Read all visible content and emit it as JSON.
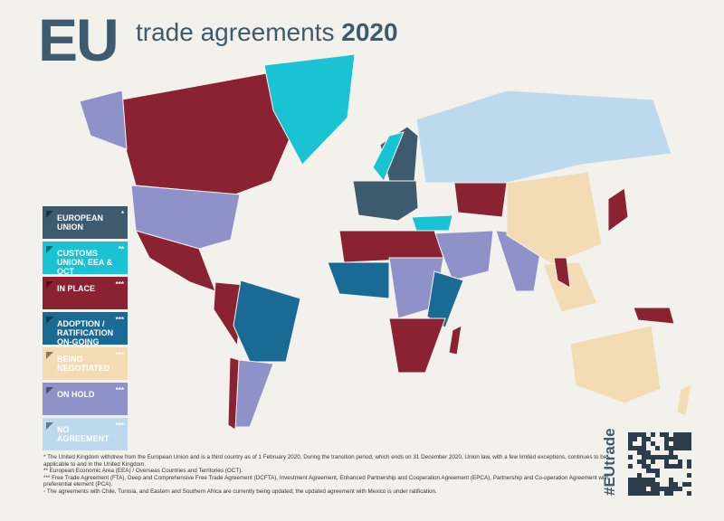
{
  "header": {
    "logo": "EU",
    "title": "trade agreements",
    "year": "2020"
  },
  "legend": [
    {
      "label": "EUROPEAN UNION",
      "note": "*",
      "color": "#3d5a6e"
    },
    {
      "label": "CUSTOMS UNION, EEA & OCT",
      "note": "**",
      "color": "#19c3d4"
    },
    {
      "label": "IN PLACE",
      "note": "***",
      "color": "#8b2232"
    },
    {
      "label": "ADOPTION / RATIFICATION ON-GOING",
      "note": "***",
      "color": "#1a6a96"
    },
    {
      "label": "BEING NEGOTIATED",
      "note": "***",
      "color": "#f3dcb3"
    },
    {
      "label": "ON HOLD",
      "note": "***",
      "color": "#8f92c8"
    },
    {
      "label": "NO AGREEMENT",
      "note": "***",
      "color": "#bcd9ee"
    }
  ],
  "footnotes": [
    "* The United Kingdom withdrew from the European Union and is a third country as of 1 February 2020. During the transition period, which ends on 31 December 2020, Union law, with a few limited exceptions, continues to be applicable to and in the United Kingdom.",
    "** European Economic Area (EEA) / Overseas Countries and Territories (OCT).",
    "*** Free Trade Agreement (FTA), Deep and Comprehensive Free Trade Agreement (DCFTA), Investment Agreement, Enhanced Partnership and Cooperation Agreement (EPCA), Partnership and Co-operation Agreement with preferential element (PCA).",
    "◦ The agreements with Chile, Tunisia, and Eastern and Southern Africa are currently being updated; the updated agreement with Mexico is under ratification."
  ],
  "hashtag": "#EUtrade"
}
